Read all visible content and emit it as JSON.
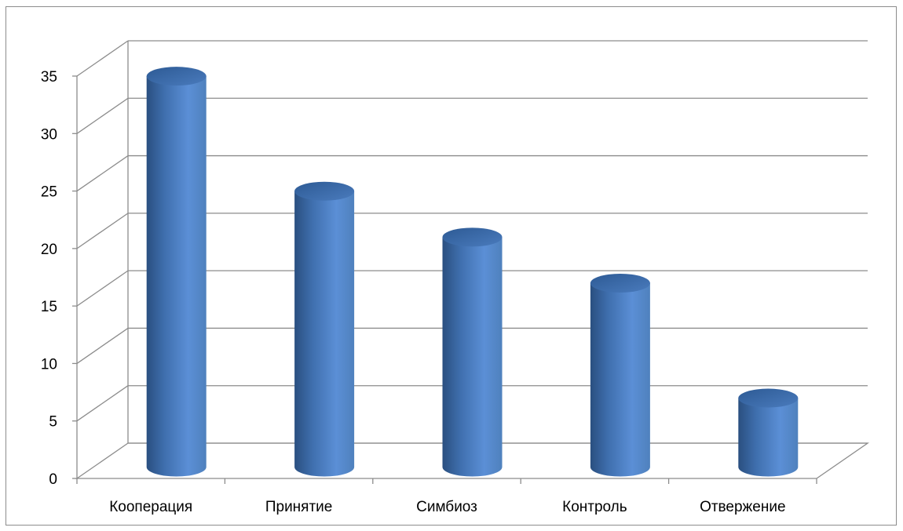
{
  "chart_data": {
    "type": "bar",
    "style": "3d-cylinder",
    "categories": [
      "Кооперация",
      "Принятие",
      "Симбиоз",
      "Контроль",
      "Отвержение"
    ],
    "values": [
      34,
      24,
      20,
      16,
      6
    ],
    "ylim": [
      0,
      35
    ],
    "yticks": [
      "0",
      "5",
      "10",
      "15",
      "20",
      "25",
      "30",
      "35"
    ],
    "grid": true,
    "legend": "none",
    "colors": {
      "bar": "#4f81bd",
      "bar_dark": "#2a4f80",
      "bar_light": "#7aa3d8",
      "grid": "#8c8c8c"
    }
  }
}
